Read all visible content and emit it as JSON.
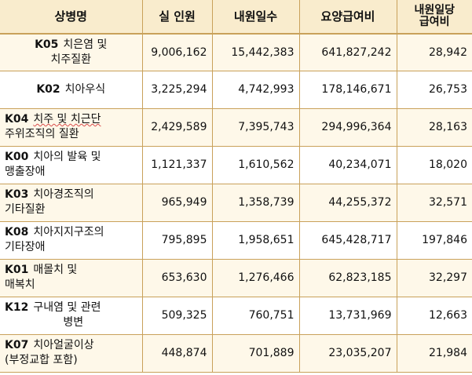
{
  "headers": {
    "disease": "상병명",
    "patients": "실 인원",
    "days": "내원일수",
    "cost": "요양급여비",
    "per_day_line1": "내원일당",
    "per_day_line2": "급여비"
  },
  "rows": [
    {
      "code": "K05",
      "name_line1": "치은염 및",
      "name_line2": "치주질환",
      "patients": "9,006,162",
      "days": "15,442,383",
      "cost": "641,827,242",
      "per_day": "28,942"
    },
    {
      "code": "K02",
      "name_line1": "치아우식",
      "name_line2": "",
      "patients": "3,225,294",
      "days": "4,742,993",
      "cost": "178,146,671",
      "per_day": "26,753"
    },
    {
      "code": "K04",
      "name_line1": "치주 및 치근단",
      "name_line2": "주위조직의 질환",
      "patients": "2,429,589",
      "days": "7,395,743",
      "cost": "294,996,364",
      "per_day": "28,163"
    },
    {
      "code": "K00",
      "name_line1": "치아의 발육 및",
      "name_line2": "맹출장애",
      "patients": "1,121,337",
      "days": "1,610,562",
      "cost": "40,234,071",
      "per_day": "18,020"
    },
    {
      "code": "K03",
      "name_line1": "치아경조직의",
      "name_line2": "기타질환",
      "patients": "965,949",
      "days": "1,358,739",
      "cost": "44,255,372",
      "per_day": "32,571"
    },
    {
      "code": "K08",
      "name_line1": "치아지지구조의",
      "name_line2": "기타장애",
      "patients": "795,895",
      "days": "1,958,651",
      "cost": "645,428,717",
      "per_day": "197,846"
    },
    {
      "code": "K01",
      "name_line1": "매몰치 및",
      "name_line2": "매복치",
      "patients": "653,630",
      "days": "1,276,466",
      "cost": "62,823,185",
      "per_day": "32,297"
    },
    {
      "code": "K12",
      "name_line1": "구내염 및 관련",
      "name_line2": "병변",
      "patients": "509,325",
      "days": "760,751",
      "cost": "13,731,969",
      "per_day": "12,663"
    },
    {
      "code": "K07",
      "name_line1": "치아얼굴이상",
      "name_line2": "(부정교합 포함)",
      "patients": "448,874",
      "days": "701,889",
      "cost": "23,035,207",
      "per_day": "21,984"
    }
  ]
}
